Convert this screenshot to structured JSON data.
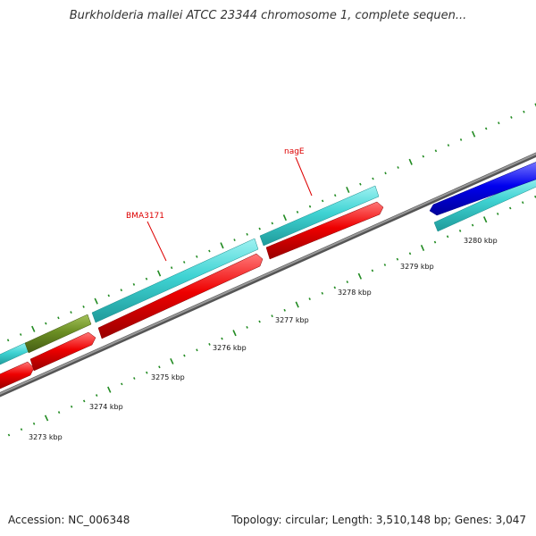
{
  "title": "Burkholderia mallei ATCC 23344 chromosome 1, complete sequen...",
  "footer": {
    "accession": "Accession: NC_006348",
    "summary": "Topology: circular; Length: 3,510,148 bp; Genes: 3,047"
  },
  "colors": {
    "cds": "#3fd3d3",
    "gene_forward": "#ee0000",
    "gene_reverse": "#0000ee",
    "olive_feature": "#6b8e23",
    "backbone": "#777777",
    "tick": "#228b22",
    "label": "#dd0000"
  },
  "scale": {
    "unit": "kbp",
    "labels": [
      "3273 kbp",
      "3274 kbp",
      "3275 kbp",
      "3276 kbp",
      "3277 kbp",
      "3278 kbp",
      "3279 kbp",
      "3280 kbp"
    ]
  },
  "gene_labels": [
    {
      "name": "BMA3171"
    },
    {
      "name": "nagE"
    }
  ]
}
